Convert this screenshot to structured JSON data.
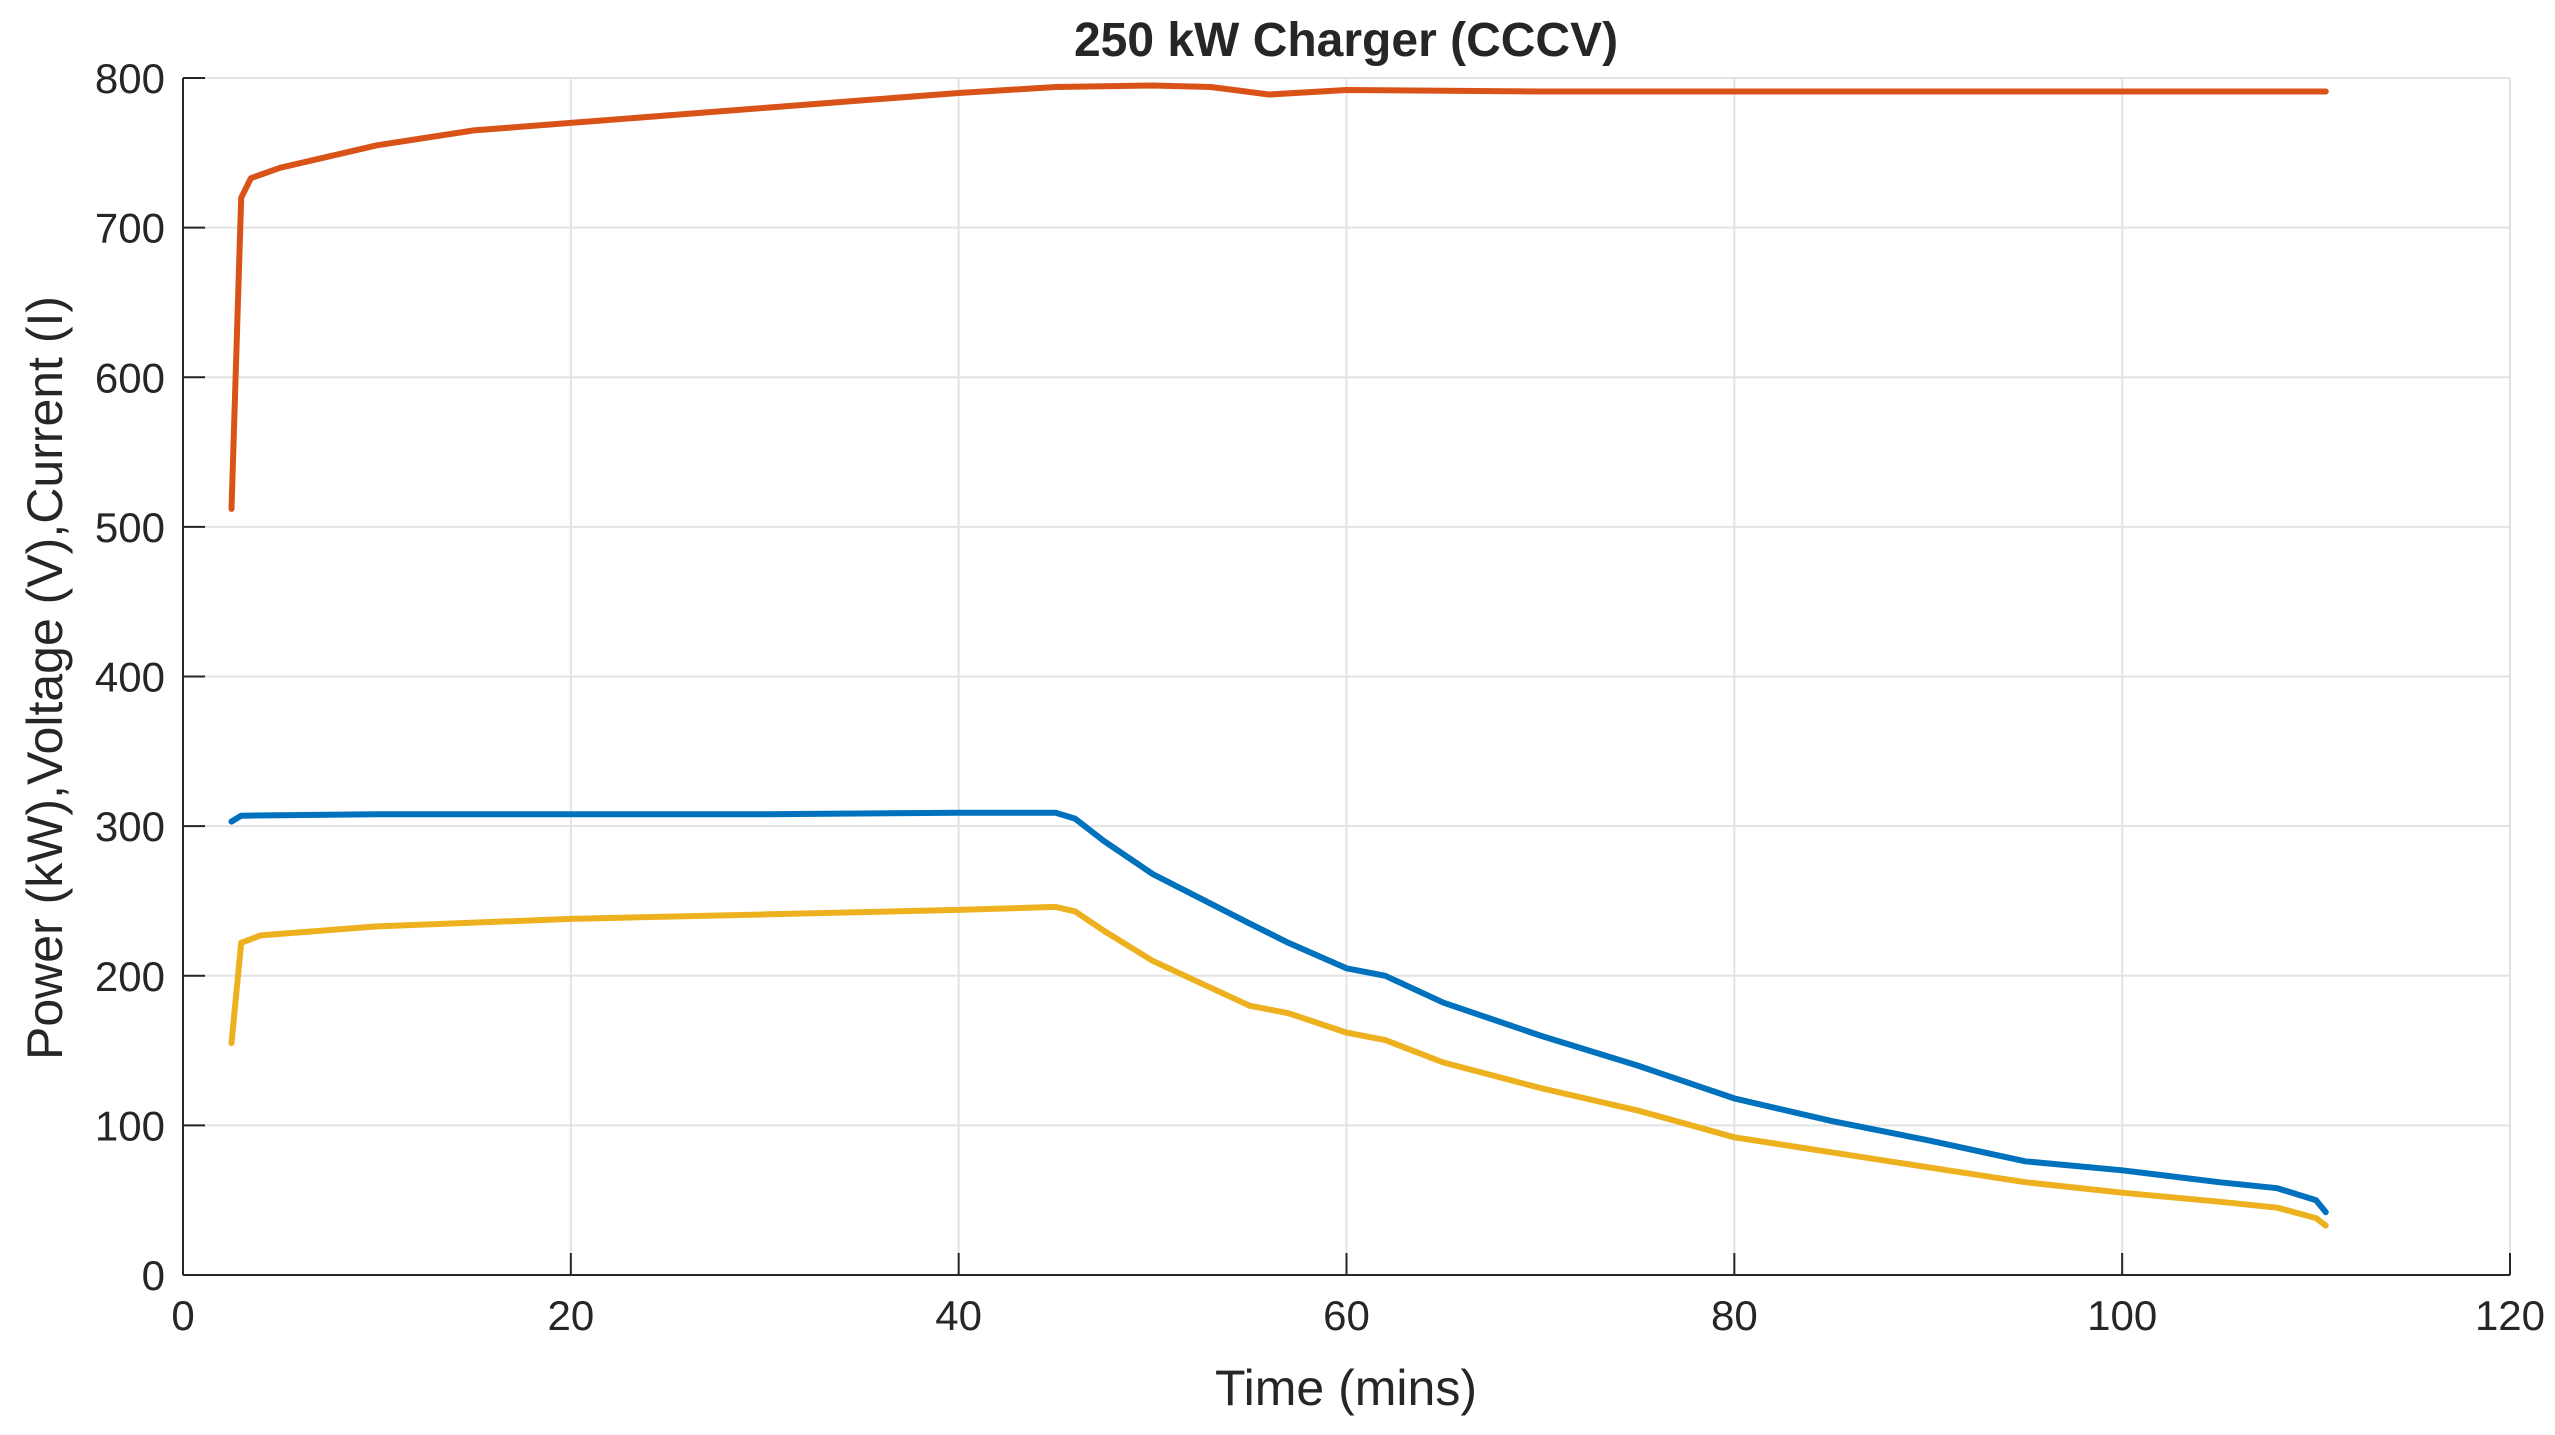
{
  "chart_data": {
    "type": "line",
    "title": "250 kW Charger (CCCV)",
    "xlabel": "Time (mins)",
    "ylabel": "Power (kW),Voltage (V),Current (I)",
    "xlim": [
      0,
      120
    ],
    "ylim": [
      0,
      800
    ],
    "xticks": [
      0,
      20,
      40,
      60,
      80,
      100,
      120
    ],
    "yticks": [
      0,
      100,
      200,
      300,
      400,
      500,
      600,
      700,
      800
    ],
    "grid": true,
    "legend": "none",
    "series": [
      {
        "color": "#D95319",
        "x": [
          2.5,
          3,
          3.5,
          5,
          10,
          15,
          20,
          25,
          30,
          35,
          40,
          45,
          50,
          53,
          56,
          60,
          70,
          80,
          90,
          100,
          110.5
        ],
        "y": [
          512,
          720,
          733,
          740,
          755,
          765,
          770,
          775,
          780,
          785,
          790,
          794,
          795,
          794,
          789,
          792,
          791,
          791,
          791,
          791,
          791
        ]
      },
      {
        "color": "#0072BD",
        "x": [
          2.5,
          3,
          10,
          20,
          30,
          40,
          45,
          46,
          47.5,
          50,
          55,
          57,
          60,
          62,
          65,
          70,
          75,
          80,
          85,
          90,
          95,
          100,
          105,
          108,
          110,
          110.5
        ],
        "y": [
          303,
          307,
          308,
          308,
          308,
          309,
          309,
          305,
          290,
          268,
          235,
          222,
          205,
          200,
          182,
          160,
          140,
          118,
          103,
          90,
          76,
          70,
          62,
          58,
          50,
          42
        ]
      },
      {
        "color": "#EDB120",
        "x": [
          2.5,
          3,
          4,
          10,
          20,
          30,
          40,
          45,
          46,
          47.5,
          50,
          55,
          57,
          60,
          62,
          65,
          70,
          75,
          80,
          85,
          90,
          95,
          100,
          105,
          108,
          110,
          110.5
        ],
        "y": [
          155,
          222,
          227,
          233,
          238,
          241,
          244,
          246,
          243,
          230,
          210,
          180,
          175,
          162,
          157,
          142,
          125,
          110,
          92,
          82,
          72,
          62,
          55,
          49,
          45,
          38,
          33
        ]
      }
    ]
  }
}
